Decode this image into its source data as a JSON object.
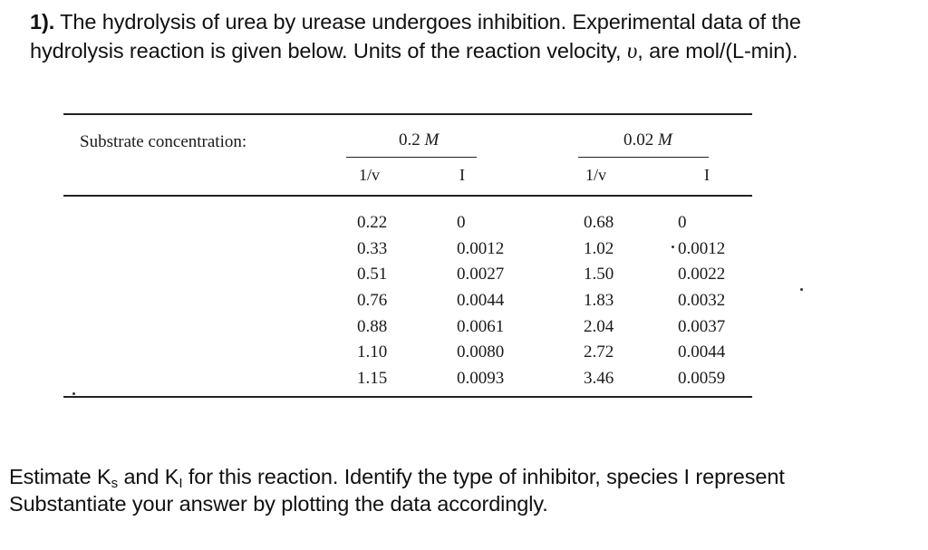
{
  "problem": {
    "number": "1).",
    "line1": "The hydrolysis of urea by urease undergoes inhibition.  Experimental data of the",
    "line2_pre": "hydrolysis reaction is given below.  Units of the reaction velocity,",
    "velocity_symbol": "υ",
    "line2_post": ", are mol/(L-min)."
  },
  "table": {
    "row_label": "Substrate concentration:",
    "groups": [
      {
        "value": "0.2",
        "unit": "M"
      },
      {
        "value": "0.02",
        "unit": "M"
      }
    ],
    "column_headers": [
      "1/v",
      "I",
      "1/v",
      "I"
    ],
    "columns": [
      [
        "0.22",
        "0.33",
        "0.51",
        "0.76",
        "0.88",
        "1.10",
        "1.15"
      ],
      [
        "0",
        "0.0012",
        "0.0027",
        "0.0044",
        "0.0061",
        "0.0080",
        "0.0093"
      ],
      [
        "0.68",
        "1.02",
        "1.50",
        "1.83",
        "2.04",
        "2.72",
        "3.46"
      ],
      [
        "0",
        "0.0012",
        "0.0022",
        "0.0032",
        "0.0037",
        "0.0044",
        "0.0059"
      ]
    ]
  },
  "task": {
    "estimate_pre": "Estimate K",
    "ks_sub": "s",
    "and": " and K",
    "ki_sub": "I",
    "estimate_post": " for this reaction.  Identify the type of inhibitor, species I represent",
    "line2": "Substantiate your answer by plotting the data accordingly."
  }
}
